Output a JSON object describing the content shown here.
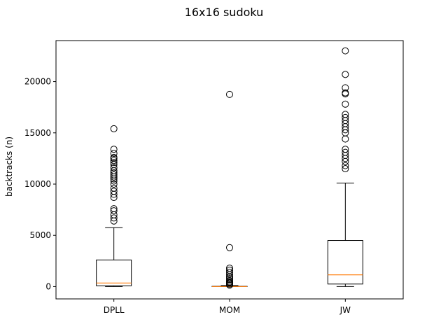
{
  "chart_data": {
    "type": "box",
    "title": "16x16 sudoku",
    "xlabel": "",
    "ylabel": "backtracks (n)",
    "ylim": [
      -1200,
      24000
    ],
    "yticks": [
      0,
      5000,
      10000,
      15000,
      20000
    ],
    "grid": false,
    "colors": {
      "box": "#000000",
      "median": "#ff7f0e",
      "outlier": "#000000"
    },
    "categories": [
      "DPLL",
      "MOM",
      "JW"
    ],
    "boxes": [
      {
        "label": "DPLL",
        "whisker_low": 0,
        "q1": 80,
        "median": 350,
        "q3": 2600,
        "whisker_high": 5750,
        "outliers": [
          6400,
          6700,
          7000,
          7400,
          7600,
          8700,
          9000,
          9300,
          9600,
          10000,
          10300,
          10500,
          10700,
          10900,
          11100,
          11300,
          11600,
          11900,
          12100,
          12300,
          12500,
          12600,
          13000,
          13400,
          15400
        ]
      },
      {
        "label": "MOM",
        "whisker_low": 0,
        "q1": 0,
        "median": 0,
        "q3": 30,
        "whisker_high": 100,
        "outliers": [
          150,
          250,
          350,
          450,
          550,
          700,
          850,
          1000,
          1200,
          1400,
          1600,
          1800,
          3800,
          18750
        ]
      },
      {
        "label": "JW",
        "whisker_low": 0,
        "q1": 250,
        "median": 1150,
        "q3": 4500,
        "whisker_high": 10100,
        "outliers": [
          11500,
          11800,
          12200,
          12500,
          12800,
          13100,
          13400,
          14400,
          15000,
          15300,
          15600,
          15900,
          16200,
          16500,
          16800,
          17800,
          18800,
          18900,
          19400,
          20700,
          23000
        ]
      }
    ]
  }
}
